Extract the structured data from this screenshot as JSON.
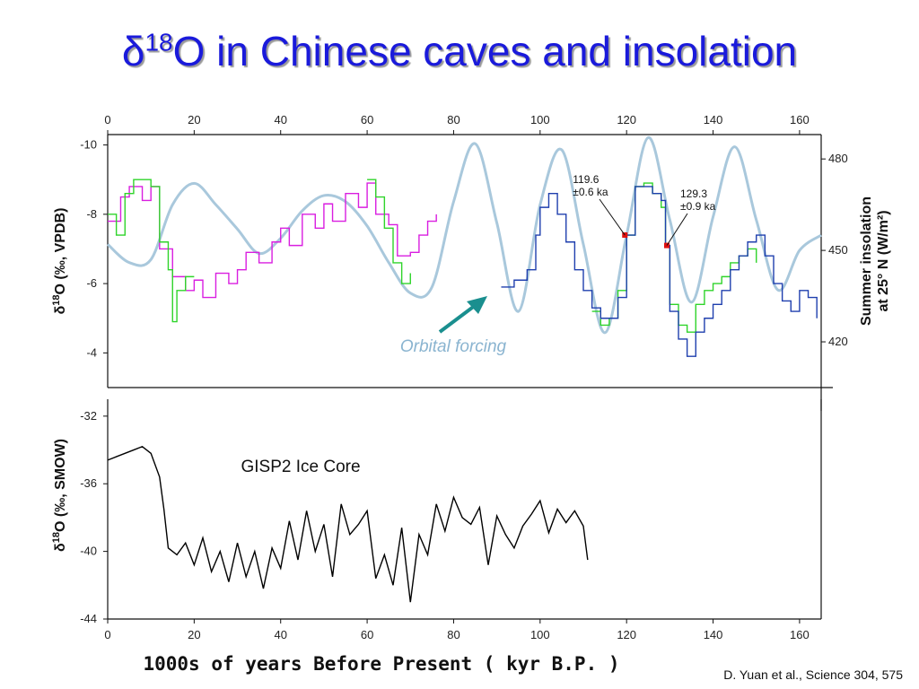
{
  "title": {
    "prefix": "δ",
    "sup": "18",
    "rest": "O in Chinese caves and insolation"
  },
  "xlabel": "1000s of years Before Present ( kyr B.P. )",
  "citation": "D. Yuan et al., Science 304, 575",
  "colors": {
    "title": "#1a1adb",
    "insolation": "#a9c8dc",
    "magenta": "#d91ee0",
    "green": "#2fd42a",
    "blue": "#1f3fae",
    "gisp2": "#000000",
    "arrow": "#1a8f8f",
    "marker": "#e01010"
  },
  "chart_data": [
    {
      "type": "line",
      "panel": "top",
      "xlim": [
        0,
        165
      ],
      "ylim": [
        -3,
        -10.3
      ],
      "y2lim": [
        405,
        488
      ],
      "x_ticks": [
        "0",
        "20",
        "40",
        "60",
        "80",
        "100",
        "120",
        "140",
        "160"
      ],
      "y_ticks": [
        "-10",
        "-8",
        "-6",
        "-4"
      ],
      "y2_ticks": [
        "480",
        "450",
        "420"
      ],
      "ylabel_prefix": "δ",
      "ylabel_sup": "18",
      "ylabel_rest": "O (‰, VPDB)",
      "y2label_line1": "Summer insolation",
      "y2label_line2": "at 25° N (W/m²)",
      "annotations": {
        "orbital": "Orbital forcing",
        "a1_line1": "119.6",
        "a1_line2": "±0.6 ka",
        "a2_line1": "129.3",
        "a2_line2": "±0.9 ka"
      },
      "markers": [
        [
          119.6,
          -7.4
        ],
        [
          129.3,
          -7.1
        ]
      ],
      "insolation": {
        "x": [
          0,
          5,
          10,
          15,
          20,
          25,
          30,
          35,
          40,
          45,
          50,
          55,
          60,
          65,
          70,
          75,
          80,
          85,
          90,
          95,
          100,
          105,
          110,
          115,
          120,
          125,
          130,
          135,
          140,
          145,
          150,
          155,
          160,
          165
        ],
        "y": [
          452,
          446,
          447,
          465,
          472,
          465,
          457,
          449,
          454,
          463,
          468,
          466,
          458,
          446,
          436,
          438,
          466,
          485,
          459,
          430,
          465,
          483,
          452,
          423,
          455,
          487,
          460,
          433,
          461,
          484,
          460,
          437,
          450,
          455
        ]
      },
      "series": [
        {
          "id": "magenta",
          "x": [
            0,
            3,
            5,
            8,
            10,
            12,
            15,
            18,
            20,
            22,
            25,
            28,
            30,
            32,
            35,
            38,
            40,
            42,
            45,
            48,
            50,
            52,
            55,
            58,
            60,
            62,
            65,
            67,
            70,
            72,
            74,
            76
          ],
          "y": [
            -7.8,
            -8.5,
            -8.8,
            -8.4,
            -8.8,
            -7.0,
            -6.2,
            -5.8,
            -6.1,
            -5.6,
            -6.3,
            -6.0,
            -6.4,
            -6.9,
            -6.6,
            -7.2,
            -7.6,
            -7.1,
            -8.0,
            -7.6,
            -8.3,
            -7.8,
            -8.6,
            -8.2,
            -8.9,
            -8.0,
            -7.7,
            -6.8,
            -6.9,
            -7.4,
            -7.8,
            -8.0
          ]
        },
        {
          "id": "green",
          "x": [
            0,
            2,
            4,
            6,
            8,
            10,
            12,
            14,
            15,
            16,
            18,
            20,
            60,
            62,
            64,
            66,
            68,
            70,
            112,
            114,
            116,
            118,
            120,
            122,
            124,
            126,
            128,
            129,
            130,
            132,
            134,
            136,
            138,
            140,
            142,
            144,
            146,
            148,
            150
          ],
          "y": [
            -8.0,
            -7.4,
            -8.6,
            -9.0,
            -9.0,
            -8.8,
            -7.2,
            -6.4,
            -4.9,
            -5.8,
            -6.2,
            -6.2,
            -9.0,
            -8.5,
            -7.6,
            -6.6,
            -6.0,
            -6.3,
            -5.2,
            -4.8,
            -5.0,
            -5.8,
            -7.4,
            -8.8,
            -8.9,
            -8.6,
            -8.2,
            -7.1,
            -5.4,
            -4.8,
            -4.6,
            -5.4,
            -5.8,
            -6.0,
            -6.2,
            -6.6,
            -6.8,
            -7.0,
            -6.6
          ]
        },
        {
          "id": "blue",
          "x": [
            91,
            94,
            97,
            99,
            100,
            102,
            104,
            106,
            108,
            110,
            112,
            114,
            116,
            118,
            120,
            122,
            124,
            126,
            128,
            129,
            130,
            132,
            134,
            136,
            138,
            140,
            142,
            144,
            146,
            148,
            150,
            152,
            154,
            156,
            158,
            160,
            162,
            164
          ],
          "y": [
            -5.9,
            -6.1,
            -6.4,
            -7.4,
            -8.2,
            -8.6,
            -8.0,
            -7.2,
            -6.4,
            -5.8,
            -5.3,
            -5.0,
            -5.0,
            -5.6,
            -7.4,
            -8.8,
            -8.8,
            -8.6,
            -8.4,
            -7.1,
            -5.2,
            -4.4,
            -3.9,
            -4.6,
            -5.0,
            -5.4,
            -5.8,
            -6.4,
            -6.8,
            -7.2,
            -7.4,
            -6.8,
            -6.0,
            -5.5,
            -5.2,
            -5.8,
            -5.6,
            -5.0
          ]
        }
      ]
    },
    {
      "type": "line",
      "panel": "bottom",
      "xlim": [
        0,
        165
      ],
      "ylim": [
        -44,
        -31
      ],
      "x_ticks": [
        "0",
        "20",
        "40",
        "60",
        "80",
        "100",
        "120",
        "140",
        "160"
      ],
      "y_ticks": [
        "-32",
        "-36",
        "-40",
        "-44"
      ],
      "ylabel_prefix": "δ",
      "ylabel_sup": "18",
      "ylabel_rest": "O (‰, SMOW)",
      "series_label": "GISP2 Ice Core",
      "series": [
        {
          "id": "gisp2",
          "x": [
            0,
            2,
            4,
            6,
            8,
            10,
            12,
            13,
            14,
            16,
            18,
            20,
            22,
            24,
            26,
            28,
            30,
            32,
            34,
            36,
            38,
            40,
            42,
            44,
            46,
            48,
            50,
            52,
            54,
            56,
            58,
            60,
            62,
            64,
            66,
            68,
            70,
            72,
            74,
            76,
            78,
            80,
            82,
            84,
            86,
            88,
            90,
            92,
            94,
            96,
            98,
            100,
            102,
            104,
            106,
            108,
            110,
            111
          ],
          "y": [
            -34.6,
            -34.4,
            -34.2,
            -34.0,
            -33.8,
            -34.2,
            -35.6,
            -37.5,
            -39.8,
            -40.2,
            -39.5,
            -40.8,
            -39.2,
            -41.2,
            -40.0,
            -41.8,
            -39.5,
            -41.5,
            -40.0,
            -42.2,
            -39.8,
            -41.0,
            -38.2,
            -40.5,
            -37.6,
            -40.0,
            -38.4,
            -41.5,
            -37.2,
            -39.0,
            -38.4,
            -37.6,
            -41.6,
            -40.2,
            -42.0,
            -38.6,
            -43.0,
            -39.0,
            -40.2,
            -37.2,
            -38.8,
            -36.8,
            -38.0,
            -38.4,
            -37.4,
            -40.8,
            -37.9,
            -39.0,
            -39.8,
            -38.5,
            -37.8,
            -37.0,
            -38.9,
            -37.5,
            -38.3,
            -37.6,
            -38.5,
            -40.5
          ]
        }
      ]
    }
  ]
}
